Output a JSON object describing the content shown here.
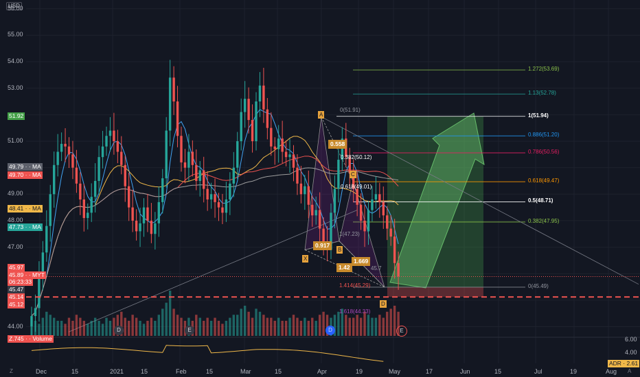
{
  "axis": {
    "currency": "USD",
    "price_labels": [
      "56.00",
      "55.00",
      "54.00",
      "53.00",
      "51.00",
      "49.00",
      "48.00",
      "47.00",
      "44.00"
    ],
    "time_labels": [
      "Dec",
      "15",
      "2021",
      "15",
      "Feb",
      "15",
      "Mar",
      "15",
      "Apr",
      "19",
      "May",
      "17",
      "Jun",
      "15",
      "Jul",
      "19",
      "Aug"
    ],
    "lower_labels": [
      "6.00",
      "4.00",
      "2.00"
    ],
    "corner_left": "Z",
    "corner_right": "A"
  },
  "tags": [
    {
      "text": "51.92",
      "bg": "#43a047",
      "fg": "#ffffff"
    },
    {
      "text": "49.79 · · MA",
      "bg": "#5d606b",
      "fg": "#ffffff"
    },
    {
      "text": "49.70 · · MA",
      "bg": "#ef5350",
      "fg": "#ffffff"
    },
    {
      "text": "48.41 · · MA",
      "bg": "#f0b849",
      "fg": "#131722"
    },
    {
      "text": "47.73 · · MA",
      "bg": "#26a69a",
      "fg": "#ffffff"
    },
    {
      "text": "45.97",
      "bg": "#ef5350",
      "fg": "#ffffff"
    },
    {
      "text": "45.89 · · MYT",
      "bg": "#ef5350",
      "fg": "#ffffff"
    },
    {
      "text": "06:23:33",
      "bg": "#ef5350",
      "fg": "#ffffff"
    },
    {
      "text": "45.47",
      "bg": "#363a45",
      "fg": "#ffffff"
    },
    {
      "text": "45.14",
      "bg": "#ef5350",
      "fg": "#ffffff"
    },
    {
      "text": "45.12",
      "bg": "#ef5350",
      "fg": "#ffffff"
    },
    {
      "text": "Z.745 · · Volume",
      "bg": "#ef5350",
      "fg": "#ffffff"
    },
    {
      "text": "ADR · 2.61",
      "bg": "#f0b849",
      "fg": "#131722"
    }
  ],
  "events": [
    "D",
    "E",
    "D",
    "E"
  ],
  "pattern": {
    "points": [
      "X",
      "A",
      "B",
      "C",
      "D"
    ],
    "ratios": [
      "0.558",
      "0.917",
      "1.42",
      "1.669"
    ],
    "inner_labels": [
      "0(51.91)",
      "0.382(50.12)",
      "0.618(49.01)",
      "1(47.23)",
      "1.414(45.29)",
      "1.618(44.33)",
      "45.7"
    ]
  },
  "fib_levels": [
    {
      "label": "1.272(53.69)",
      "color": "#8bc34a"
    },
    {
      "label": "1.13(52.78)",
      "color": "#26a69a"
    },
    {
      "label": "1(51.94)",
      "color": "#ffffff"
    },
    {
      "label": "0.886(51.20)",
      "color": "#2196f3"
    },
    {
      "label": "0.786(50.56)",
      "color": "#e91e63"
    },
    {
      "label": "0.618(49.47)",
      "color": "#ff9800"
    },
    {
      "label": "0.5(48.71)",
      "color": "#ffffff"
    },
    {
      "label": "0.382(47.95)",
      "color": "#8bc34a"
    },
    {
      "label": "0(45.49)",
      "color": "#9598a1"
    }
  ],
  "colors": {
    "up": "#26a69a",
    "down": "#ef5350",
    "bg": "#131722",
    "accent": "#e6a23c"
  },
  "chart_data": {
    "type": "candlestick",
    "y_range": [
      43.6,
      56.2
    ],
    "closes": [
      44.4,
      44.7,
      45.8,
      46.8,
      47.8,
      49.0,
      50.1,
      50.6,
      50.9,
      50.8,
      50.5,
      50.0,
      49.4,
      48.8,
      48.1,
      48.3,
      48.9,
      49.5,
      50.4,
      50.8,
      51.2,
      51.4,
      51.0,
      50.6,
      50.1,
      49.3,
      48.5,
      48.0,
      47.6,
      47.9,
      48.5,
      48.0,
      47.5,
      47.9,
      48.7,
      49.6,
      51.4,
      53.4,
      52.5,
      51.2,
      50.2,
      50.0,
      50.6,
      50.1,
      49.5,
      49.9,
      49.2,
      48.8,
      49.0,
      48.7,
      48.5,
      48.3,
      48.8,
      49.4,
      50.0,
      51.0,
      52.1,
      52.6,
      51.8,
      51.0,
      52.5,
      53.1,
      52.2,
      51.5,
      50.8,
      50.7,
      51.1,
      50.6,
      50.4,
      50.5,
      50.0,
      49.4,
      49.0,
      49.3,
      48.6,
      48.2,
      48.4,
      47.7,
      47.2,
      46.9,
      48.3,
      49.2,
      50.3,
      51.1,
      50.4,
      49.8,
      49.2,
      48.6,
      48.0,
      47.6,
      48.4,
      48.8,
      49.0,
      48.7,
      48.2,
      47.7,
      47.4,
      46.4,
      45.9
    ],
    "volume": [
      3,
      5,
      4,
      6,
      8,
      7,
      6,
      5,
      5,
      4,
      6,
      5,
      7,
      6,
      5,
      4,
      5,
      6,
      5,
      4,
      6,
      5,
      6,
      7,
      8,
      6,
      5,
      7,
      6,
      5,
      4,
      5,
      6,
      5,
      7,
      9,
      11,
      15,
      9,
      7,
      6,
      5,
      6,
      5,
      7,
      6,
      5,
      6,
      5,
      6,
      5,
      4,
      5,
      6,
      7,
      7,
      9,
      10,
      8,
      6,
      9,
      8,
      7,
      6,
      6,
      5,
      6,
      5,
      5,
      6,
      7,
      6,
      5,
      6,
      5,
      6,
      5,
      7,
      8,
      7,
      6,
      7,
      8,
      9,
      7,
      6,
      6,
      7,
      6,
      8,
      7,
      6,
      6,
      7,
      6,
      8,
      9,
      10,
      8
    ],
    "trade": {
      "entry": 45.49,
      "stop": 45.12,
      "target": 51.94
    }
  }
}
